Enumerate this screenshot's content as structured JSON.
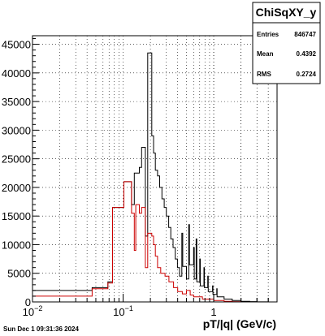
{
  "chart_data": {
    "type": "histogram",
    "title": "",
    "xlabel": "pT/|q| (GeV/c)",
    "ylabel": "",
    "x_scale": "log",
    "xlim": [
      0.01,
      5.0
    ],
    "ylim": [
      0,
      46500
    ],
    "x_ticks": [
      {
        "value": 0.01,
        "label_base": "10",
        "label_exp": "−2"
      },
      {
        "value": 0.1,
        "label_base": "10",
        "label_exp": "−1"
      },
      {
        "value": 1,
        "label_base": "1",
        "label_exp": ""
      }
    ],
    "y_ticks": [
      0,
      5000,
      10000,
      15000,
      20000,
      25000,
      30000,
      35000,
      40000,
      45000
    ],
    "y_tick_labels": [
      "0",
      "5000",
      "10000",
      "15000",
      "20000",
      "25000",
      "30000",
      "35000",
      "40000",
      "45000"
    ],
    "grid": true,
    "stats_box": {
      "name": "ChiSqXY_y",
      "entries_label": "Entries",
      "entries_value": "846747",
      "mean_label": "Mean",
      "mean_value": "0.4392",
      "rms_label": "RMS",
      "rms_value": "0.2724"
    },
    "timestamp": "Sun Dec  1 09:31:36 2024",
    "series": [
      {
        "name": "",
        "color": "#000000",
        "steps": [
          [
            0.01,
            2000
          ],
          [
            0.0455,
            2500
          ],
          [
            0.068,
            3500
          ],
          [
            0.0765,
            16500
          ],
          [
            0.102,
            21000
          ],
          [
            0.124,
            17000
          ],
          [
            0.133,
            22500
          ],
          [
            0.151,
            23500
          ],
          [
            0.16,
            27000
          ],
          [
            0.176,
            11500
          ],
          [
            0.187,
            43500
          ],
          [
            0.207,
            29000
          ],
          [
            0.217,
            26000
          ],
          [
            0.227,
            23000
          ],
          [
            0.24,
            22000
          ],
          [
            0.253,
            20000
          ],
          [
            0.268,
            18000
          ],
          [
            0.284,
            16500
          ],
          [
            0.3,
            15000
          ],
          [
            0.318,
            13000
          ],
          [
            0.336,
            11000
          ],
          [
            0.356,
            9500
          ],
          [
            0.376,
            7500
          ],
          [
            0.398,
            6000
          ],
          [
            0.42,
            4500
          ],
          [
            0.445,
            12000
          ],
          [
            0.455,
            6200
          ],
          [
            0.5,
            4000
          ],
          [
            0.53,
            13500
          ],
          [
            0.54,
            6500
          ],
          [
            0.6,
            9500
          ],
          [
            0.61,
            4000
          ],
          [
            0.64,
            11000
          ],
          [
            0.65,
            3500
          ],
          [
            0.7,
            7500
          ],
          [
            0.71,
            2800
          ],
          [
            0.78,
            6000
          ],
          [
            0.79,
            2500
          ],
          [
            0.86,
            4500
          ],
          [
            0.87,
            1800
          ],
          [
            0.97,
            2800
          ],
          [
            0.98,
            1300
          ],
          [
            1.08,
            2300
          ],
          [
            1.09,
            900
          ],
          [
            1.3,
            500
          ],
          [
            1.6,
            250
          ],
          [
            2.0,
            100
          ],
          [
            2.5,
            50
          ],
          [
            3.0,
            20
          ]
        ],
        "end": 4.0
      },
      {
        "name": "",
        "color": "#cc0000",
        "steps": [
          [
            0.01,
            1000
          ],
          [
            0.0455,
            2300
          ],
          [
            0.068,
            3300
          ],
          [
            0.0765,
            16500
          ],
          [
            0.102,
            21000
          ],
          [
            0.124,
            15500
          ],
          [
            0.133,
            9000
          ],
          [
            0.138,
            17000
          ],
          [
            0.151,
            15500
          ],
          [
            0.16,
            16500
          ],
          [
            0.176,
            6000
          ],
          [
            0.187,
            12000
          ],
          [
            0.207,
            11500
          ],
          [
            0.217,
            10000
          ],
          [
            0.227,
            8000
          ],
          [
            0.24,
            6000
          ],
          [
            0.26,
            5000
          ],
          [
            0.29,
            4500
          ],
          [
            0.32,
            3500
          ],
          [
            0.36,
            2500
          ],
          [
            0.4,
            1800
          ],
          [
            0.45,
            1400
          ],
          [
            0.5,
            2000
          ],
          [
            0.55,
            1200
          ],
          [
            0.6,
            900
          ],
          [
            0.75,
            500
          ],
          [
            1.0,
            250
          ],
          [
            1.3,
            120
          ],
          [
            1.6,
            50
          ]
        ],
        "end": 2.0
      }
    ]
  }
}
